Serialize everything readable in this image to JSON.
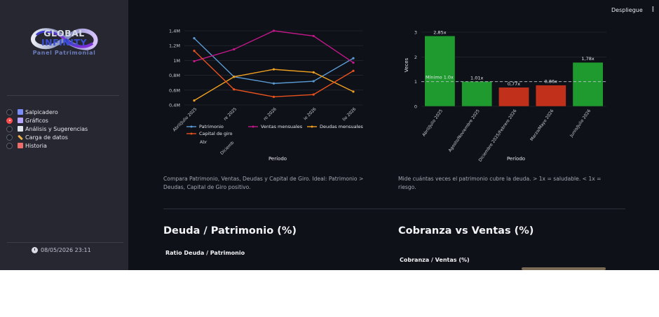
{
  "header": {
    "deploy_label": "Despliegue",
    "menu_icon": "⋮"
  },
  "sidebar": {
    "brand_top": "GLOBAL",
    "brand_bottom": "INFINITY",
    "subtitle": "Panel Patrimonial",
    "items": [
      {
        "label": "Salpicadero",
        "icon": "chart-icon",
        "color": "#7b8cff",
        "selected": false
      },
      {
        "label": "Gráficos",
        "icon": "chart-up-icon",
        "color": "#b7a6ff",
        "selected": true
      },
      {
        "label": "Análisis y Sugerencias",
        "icon": "document-icon",
        "color": "#dfe3ea",
        "selected": false
      },
      {
        "label": "Carga de datos",
        "icon": "pencil-icon",
        "color": "#f0b34a",
        "selected": false
      },
      {
        "label": "Historia",
        "icon": "calendar-icon",
        "color": "#f06b6b",
        "selected": false
      }
    ],
    "timestamp": "08/05/2026 23:11"
  },
  "line_chart_caption": "Compara Patrimonio, Ventas, Deudas y Capital de Giro. Ideal: Patrimonio > Deudas, Capital de Giro positivo.",
  "bar_chart_caption": "Mide cuántas veces el patrimonio cubre la deuda. > 1x = saludable. < 1x = riesgo.",
  "sections": {
    "debt_title": "Deuda / Patrimonio (%)",
    "debt_subtitle": "Ratio Deuda / Patrimonio",
    "collections_title": "Cobranza vs Ventas (%)",
    "collections_subtitle": "Cobranza / Ventas (%)"
  },
  "chart_data": [
    {
      "type": "line",
      "title": "",
      "xlabel": "Período",
      "ylabel": "",
      "x": [
        "Abril/Julio 2025",
        "Agosto/Noviembre 2025",
        "Diciembre 2025/Febrero 2026",
        "Marzo/Mayo 2026",
        "Junio/Julio 2026"
      ],
      "x_tick_labels": [
        "Abril/Julio 2025",
        "re 2025",
        "ro 2026",
        "io 2026",
        "lio 2026"
      ],
      "y_ticks": [
        "1,4M",
        "1,2M",
        "1M",
        "0,8M",
        "0,6M",
        "0,4M"
      ],
      "ylim": [
        400000,
        1400000
      ],
      "series": [
        {
          "name": "Patrimonio",
          "color": "#5b9bd5",
          "values": [
            1300000,
            780000,
            690000,
            720000,
            1030000
          ]
        },
        {
          "name": "Ventas mensuales",
          "color": "#c2188a",
          "values": [
            990000,
            1150000,
            1400000,
            1330000,
            970000
          ]
        },
        {
          "name": "Deudas mensuales",
          "color": "#f0a020",
          "values": [
            460000,
            780000,
            880000,
            840000,
            580000
          ]
        },
        {
          "name": "Capital de giro",
          "color": "#e8521e",
          "values": [
            1130000,
            610000,
            510000,
            540000,
            860000
          ]
        }
      ],
      "legend_extra_labels": [
        "Abr",
        "Diciemb"
      ],
      "grid": true,
      "legend_position": "bottom"
    },
    {
      "type": "bar",
      "title": "",
      "xlabel": "Período",
      "ylabel": "Veces",
      "categories": [
        "Abril/Julio 2025",
        "Agosto/Noviembre 2025",
        "Diciembre 2025/Febrero 2026",
        "Marzo/Mayo 2026",
        "Junio/Julio 2026"
      ],
      "values": [
        2.85,
        1.01,
        0.77,
        0.86,
        1.78
      ],
      "value_labels": [
        "2,85x",
        "1.01x",
        "0,77x",
        "0,86x",
        "1,78x"
      ],
      "colors": [
        "#1f9a2e",
        "#1f9a2e",
        "#c0301a",
        "#c0301a",
        "#1f9a2e"
      ],
      "y_ticks": [
        "3",
        "2",
        "1",
        "0"
      ],
      "ylim": [
        0,
        3
      ],
      "threshold": {
        "value": 1.0,
        "label": "Mínimo 1.0x"
      },
      "grid": true
    }
  ]
}
